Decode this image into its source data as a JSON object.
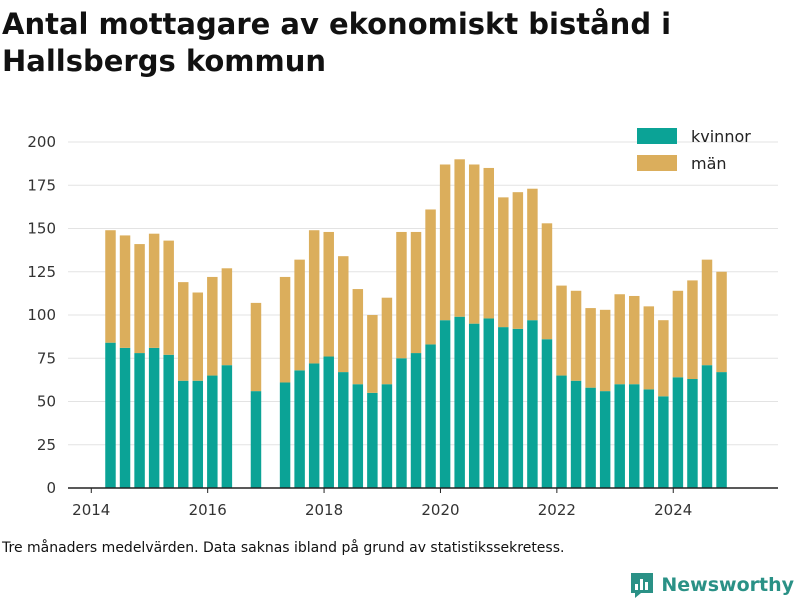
{
  "colors": {
    "women": "#0ba396",
    "men": "#dbae5c",
    "grid": "#e3e3e3",
    "axis": "#222222",
    "brand": "#2a9186"
  },
  "footnote": "Tre månaders medelvärden. Data saknas ibland på grund av statistikssekretess.",
  "brand": {
    "name": "Newsworthy",
    "icon": "bar-chart-logo-icon"
  },
  "chart_data": {
    "type": "bar",
    "stacked": true,
    "title": "Antal mottagare av ekonomiskt bistånd i Hallsbergs kommun",
    "xlabel": "",
    "ylabel": "",
    "ylim": [
      0,
      200
    ],
    "xlim": [
      2013.6,
      2025.8
    ],
    "yticks": [
      0,
      25,
      50,
      75,
      100,
      125,
      150,
      175,
      200
    ],
    "xticks": [
      2014,
      2016,
      2018,
      2020,
      2022,
      2024
    ],
    "grid": "horizontal",
    "legend_position": "top-right",
    "x": [
      2014.33,
      2014.58,
      2014.83,
      2015.08,
      2015.33,
      2015.58,
      2015.83,
      2016.08,
      2016.33,
      2016.83,
      2017.33,
      2017.58,
      2017.83,
      2018.08,
      2018.33,
      2018.58,
      2018.83,
      2019.08,
      2019.33,
      2019.58,
      2019.83,
      2020.08,
      2020.33,
      2020.58,
      2020.83,
      2021.08,
      2021.33,
      2021.58,
      2021.83,
      2022.08,
      2022.33,
      2022.58,
      2022.83,
      2023.08,
      2023.33,
      2023.58,
      2023.83,
      2024.08,
      2024.33,
      2024.58,
      2024.83
    ],
    "series": [
      {
        "name": "kvinnor",
        "values": [
          84,
          81,
          78,
          81,
          77,
          62,
          62,
          65,
          71,
          56,
          61,
          68,
          72,
          76,
          67,
          60,
          55,
          60,
          75,
          78,
          83,
          97,
          99,
          95,
          98,
          93,
          92,
          97,
          86,
          65,
          62,
          58,
          56,
          60,
          60,
          57,
          53,
          64,
          63,
          71,
          67
        ]
      },
      {
        "name": "män",
        "values": [
          65,
          65,
          63,
          66,
          66,
          57,
          51,
          57,
          56,
          51,
          61,
          64,
          77,
          72,
          67,
          55,
          45,
          50,
          73,
          70,
          78,
          90,
          91,
          92,
          87,
          75,
          79,
          76,
          67,
          52,
          52,
          46,
          47,
          52,
          51,
          48,
          44,
          50,
          57,
          61,
          58
        ]
      }
    ]
  }
}
